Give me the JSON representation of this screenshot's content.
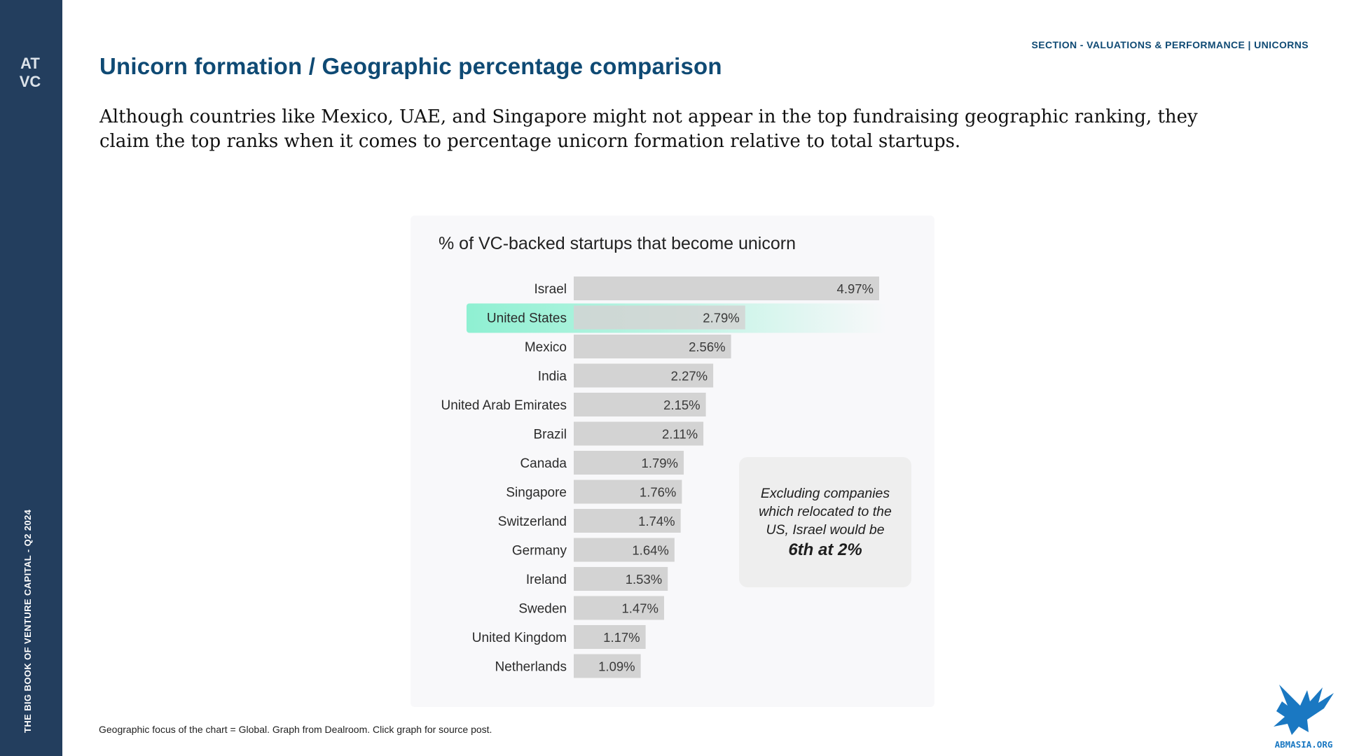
{
  "sidebar": {
    "logo_lines": [
      "AT",
      "VC"
    ],
    "vertical_text": "THE BIG BOOK OF VENTURE CAPITAL - Q2 2024"
  },
  "header": {
    "section_label": "SECTION - VALUATIONS & PERFORMANCE | UNICORNS",
    "title": "Unicorn formation / Geographic percentage comparison",
    "lead": "Although countries like Mexico, UAE, and Singapore might not appear in the top fundraising geographic ranking, they claim the top ranks when it comes to percentage unicorn formation relative to total startups."
  },
  "chart_data": {
    "type": "bar",
    "orientation": "horizontal",
    "title": "% of VC-backed startups that become unicorn",
    "xlabel": "",
    "ylabel": "",
    "grid": false,
    "value_suffix": "%",
    "categories": [
      "Israel",
      "United States",
      "Mexico",
      "India",
      "United Arab Emirates",
      "Brazil",
      "Canada",
      "Singapore",
      "Switzerland",
      "Germany",
      "Ireland",
      "Sweden",
      "United Kingdom",
      "Netherlands"
    ],
    "values": [
      4.97,
      2.79,
      2.56,
      2.27,
      2.15,
      2.11,
      1.79,
      1.76,
      1.74,
      1.64,
      1.53,
      1.47,
      1.17,
      1.09
    ],
    "highlighted_category": "United States",
    "bar_color": "#d3d3d3",
    "highlight_color": "#8ff0d2",
    "annotation": {
      "text": "Excluding companies which relocated to the US, Israel would be",
      "emphasis": "6th at 2%"
    }
  },
  "footer": {
    "footnote": "Geographic focus of the chart = Global. Graph from Dealroom. Click graph for source post.",
    "brand_text": "ABMASIA.ORG"
  },
  "colors": {
    "sidebar": "#233e5e",
    "title": "#0f4a74",
    "brand_blue": "#1a78c2"
  }
}
